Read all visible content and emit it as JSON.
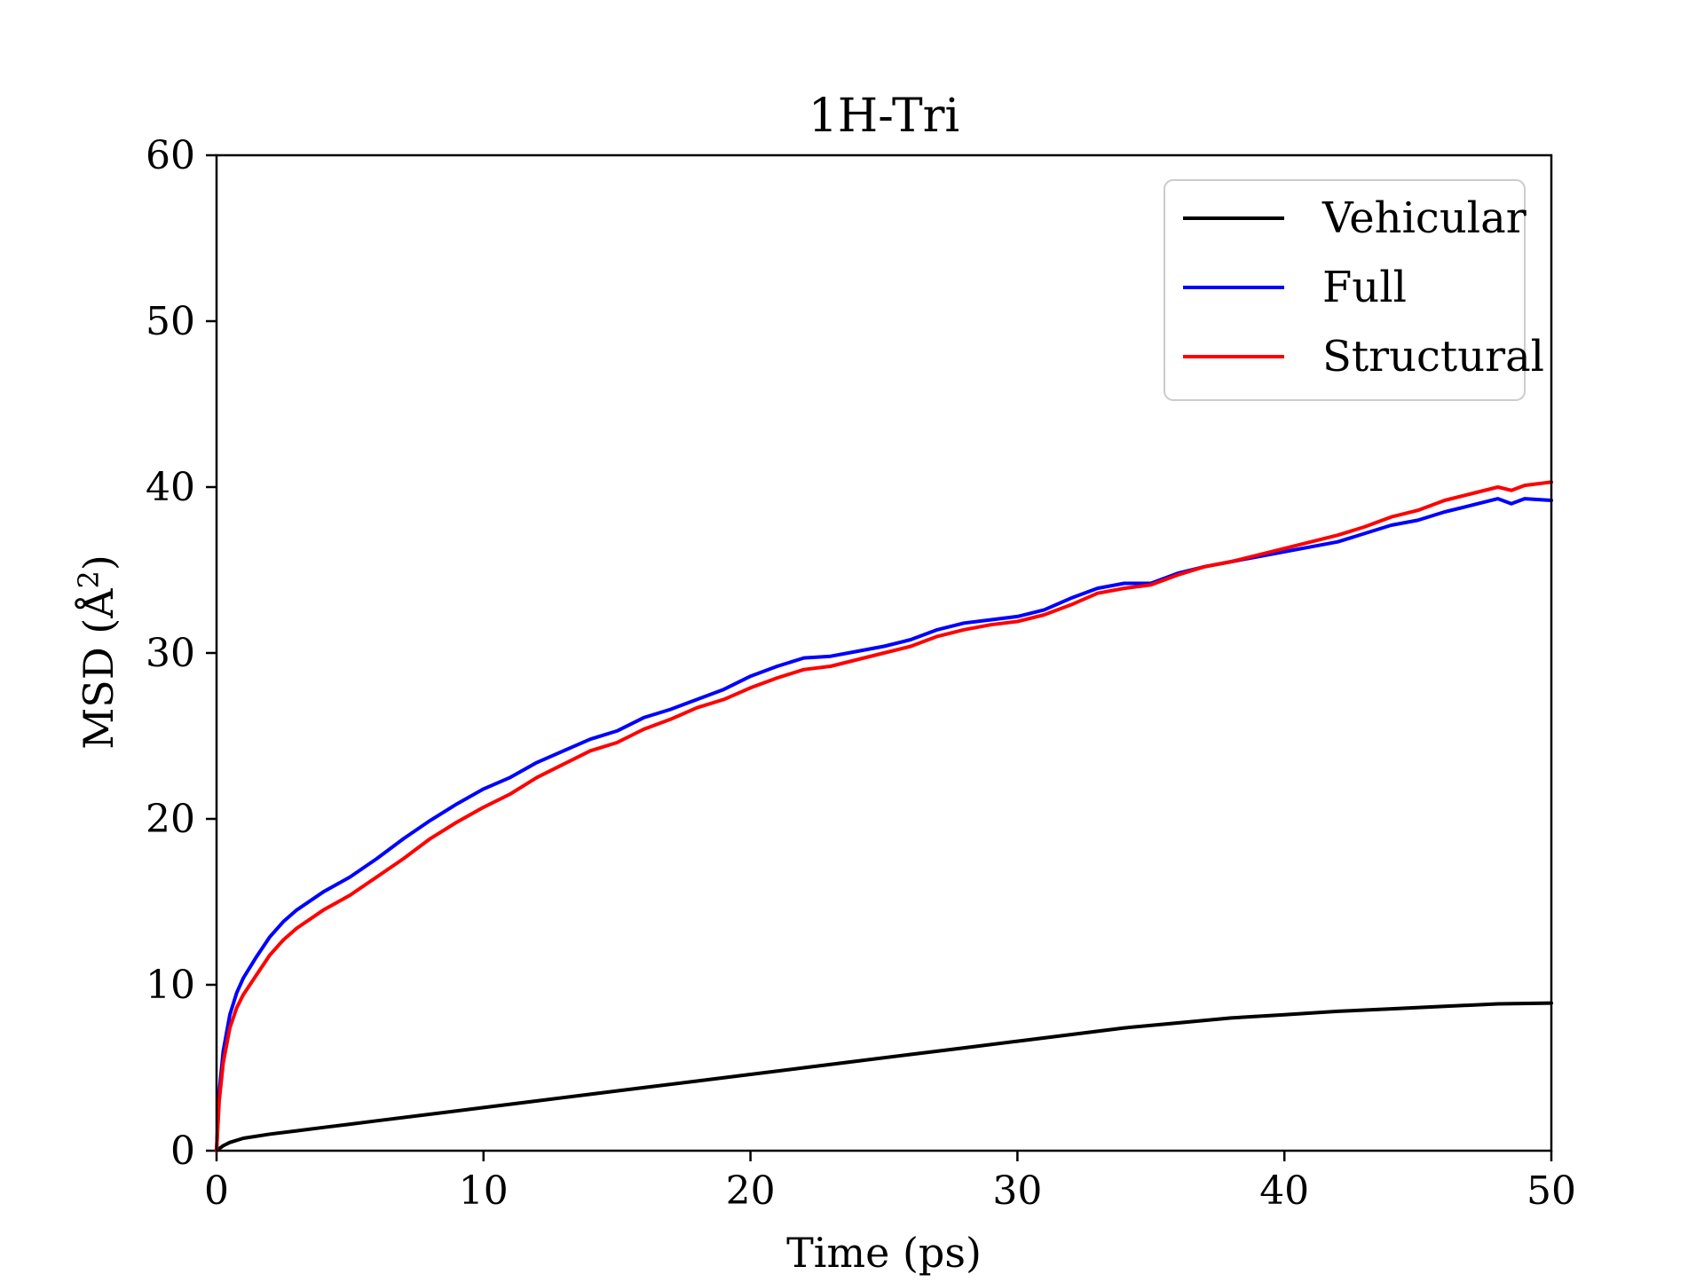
{
  "chart_data": {
    "type": "line",
    "title": "1H-Tri",
    "xlabel": "Time (ps)",
    "ylabel": "MSD (Å",
    "ylabel_sup": "2",
    "ylabel_close": ")",
    "xlim": [
      0,
      50
    ],
    "ylim": [
      0,
      60
    ],
    "xticks": [
      0,
      10,
      20,
      30,
      40,
      50
    ],
    "yticks": [
      0,
      10,
      20,
      30,
      40,
      50,
      60
    ],
    "xtick_labels": [
      "0",
      "10",
      "20",
      "30",
      "40",
      "50"
    ],
    "ytick_labels": [
      "0",
      "10",
      "20",
      "30",
      "40",
      "50",
      "60"
    ],
    "grid": false,
    "legend_position": "top-right",
    "series": [
      {
        "name": "Vehicular",
        "color": "#000000",
        "x": [
          0,
          0.25,
          0.5,
          1,
          2,
          3,
          4,
          5,
          6,
          8,
          10,
          12,
          14,
          16,
          18,
          20,
          22,
          24,
          26,
          28,
          30,
          32,
          34,
          36,
          38,
          40,
          42,
          44,
          46,
          48,
          50
        ],
        "values": [
          0,
          0.3,
          0.5,
          0.75,
          1.0,
          1.2,
          1.4,
          1.6,
          1.8,
          2.2,
          2.6,
          3.0,
          3.4,
          3.8,
          4.2,
          4.6,
          5.0,
          5.4,
          5.8,
          6.2,
          6.6,
          7.0,
          7.4,
          7.7,
          8.0,
          8.2,
          8.4,
          8.55,
          8.7,
          8.85,
          8.9
        ]
      },
      {
        "name": "Full",
        "color": "#0000ff",
        "x": [
          0,
          0.1,
          0.25,
          0.5,
          0.75,
          1,
          1.5,
          2,
          2.5,
          3,
          4,
          5,
          6,
          7,
          8,
          9,
          10,
          11,
          12,
          13,
          14,
          15,
          16,
          17,
          18,
          19,
          20,
          21,
          22,
          23,
          24,
          25,
          26,
          27,
          28,
          29,
          30,
          31,
          32,
          33,
          34,
          35,
          36,
          37,
          38,
          39,
          40,
          41,
          42,
          43,
          44,
          45,
          46,
          47,
          48,
          48.5,
          49,
          50
        ],
        "values": [
          0,
          3.5,
          6.0,
          8.2,
          9.5,
          10.4,
          11.7,
          12.9,
          13.8,
          14.5,
          15.6,
          16.5,
          17.6,
          18.8,
          19.9,
          20.9,
          21.8,
          22.5,
          23.4,
          24.1,
          24.8,
          25.3,
          26.1,
          26.6,
          27.2,
          27.8,
          28.6,
          29.2,
          29.7,
          29.8,
          30.1,
          30.4,
          30.8,
          31.4,
          31.8,
          32.0,
          32.2,
          32.6,
          33.3,
          33.9,
          34.2,
          34.2,
          34.8,
          35.2,
          35.5,
          35.8,
          36.1,
          36.4,
          36.7,
          37.2,
          37.7,
          38.0,
          38.5,
          38.9,
          39.3,
          39.0,
          39.3,
          39.2
        ]
      },
      {
        "name": "Structural",
        "color": "#ff0000",
        "x": [
          0,
          0.1,
          0.25,
          0.5,
          0.75,
          1,
          1.5,
          2,
          2.5,
          3,
          4,
          5,
          6,
          7,
          8,
          9,
          10,
          11,
          12,
          13,
          14,
          15,
          16,
          17,
          18,
          19,
          20,
          21,
          22,
          23,
          24,
          25,
          26,
          27,
          28,
          29,
          30,
          31,
          32,
          33,
          34,
          35,
          36,
          37,
          38,
          39,
          40,
          41,
          42,
          43,
          44,
          45,
          46,
          47,
          48,
          48.5,
          49,
          50
        ],
        "values": [
          0,
          3.0,
          5.3,
          7.4,
          8.6,
          9.4,
          10.6,
          11.8,
          12.7,
          13.4,
          14.5,
          15.4,
          16.5,
          17.6,
          18.8,
          19.8,
          20.7,
          21.5,
          22.5,
          23.3,
          24.1,
          24.6,
          25.4,
          26.0,
          26.7,
          27.2,
          27.9,
          28.5,
          29.0,
          29.2,
          29.6,
          30.0,
          30.4,
          31.0,
          31.4,
          31.7,
          31.9,
          32.3,
          32.9,
          33.6,
          33.9,
          34.1,
          34.7,
          35.2,
          35.5,
          35.9,
          36.3,
          36.7,
          37.1,
          37.6,
          38.2,
          38.6,
          39.2,
          39.6,
          40.0,
          39.8,
          40.1,
          40.3
        ]
      }
    ]
  }
}
